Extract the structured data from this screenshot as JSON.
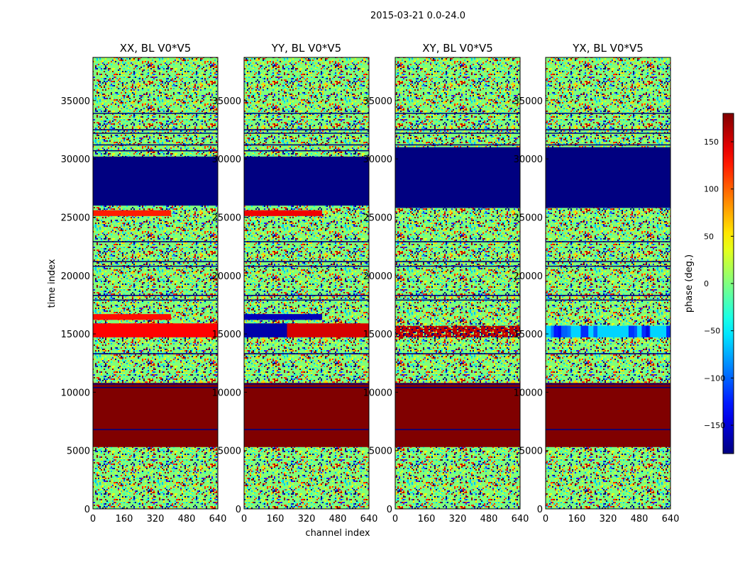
{
  "figure": {
    "suptitle": "2015-03-21 0.0-24.0"
  },
  "chart_data": {
    "type": "heatmap",
    "suptitle": "2015-03-21 0.0-24.0",
    "panels": [
      {
        "title": "XX, BL V0*V5",
        "polarization": "XX",
        "bands": [
          {
            "t0": 5300,
            "t1": 10800,
            "phase": 180
          },
          {
            "t0": 14700,
            "t1": 15900,
            "phase": 135
          },
          {
            "t0": 16200,
            "t1": 16700,
            "phase": 130,
            "x1": 400
          },
          {
            "t0": 25100,
            "t1": 25600,
            "phase": 125,
            "x1": 400
          },
          {
            "t0": 26000,
            "t1": 30200,
            "phase": -180
          }
        ]
      },
      {
        "title": "YY, BL V0*V5",
        "polarization": "YY",
        "bands": [
          {
            "t0": 5300,
            "t1": 10800,
            "phase": 180
          },
          {
            "t0": 14700,
            "t1": 15900,
            "phase": -165,
            "x1": 220
          },
          {
            "t0": 14700,
            "t1": 15900,
            "phase": 150,
            "x0": 220
          },
          {
            "t0": 16200,
            "t1": 16700,
            "phase": -160,
            "x1": 400
          },
          {
            "t0": 25100,
            "t1": 25600,
            "phase": 140,
            "x1": 400
          },
          {
            "t0": 26000,
            "t1": 30200,
            "phase": -180
          }
        ]
      },
      {
        "title": "XY, BL V0*V5",
        "polarization": "XY",
        "bands": [
          {
            "t0": 5300,
            "t1": 10800,
            "phase": 180
          },
          {
            "t0": 14700,
            "t1": 15700,
            "phase": 160,
            "noisy": true
          },
          {
            "t0": 25800,
            "t1": 31000,
            "phase": -180
          }
        ]
      },
      {
        "title": "YX, BL V0*V5",
        "polarization": "YX",
        "bands": [
          {
            "t0": 5300,
            "t1": 10800,
            "phase": 180
          },
          {
            "t0": 14700,
            "t1": 15700,
            "phase": -60,
            "noisy": true
          },
          {
            "t0": 25800,
            "t1": 31000,
            "phase": -180
          }
        ]
      }
    ],
    "xlabel": "channel index",
    "ylabel": "time index",
    "xlim": [
      0,
      640
    ],
    "ylim": [
      0,
      38700
    ],
    "xticks": [
      0,
      160,
      320,
      480,
      640
    ],
    "yticks": [
      0,
      5000,
      10000,
      15000,
      20000,
      25000,
      30000,
      35000
    ],
    "horizontal_lines": [
      6800,
      10400,
      10700,
      13300,
      17900,
      18300,
      20800,
      21200,
      22900,
      30700,
      31200,
      32200,
      32500,
      33900
    ],
    "colorbar": {
      "label": "phase (deg.)",
      "range": [
        -180,
        180
      ],
      "ticks": [
        150,
        100,
        50,
        0,
        -50,
        -100,
        -150
      ],
      "colormap": "jet"
    },
    "grid": false
  }
}
